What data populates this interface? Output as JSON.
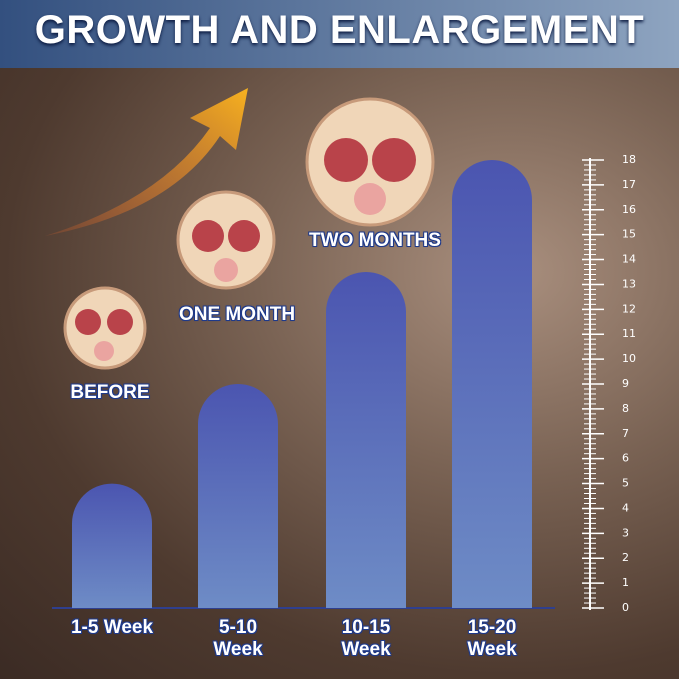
{
  "chart_data": {
    "type": "bar",
    "title": "GROWTH AND ENLARGEMENT",
    "annotations": [
      "BEFORE",
      "ONE MONTH",
      "TWO MONTHS"
    ],
    "categories": [
      "1-5 Week",
      "5-10 Week",
      "10-15 Week",
      "15-20 Week"
    ],
    "values": [
      5,
      9,
      13.5,
      18
    ],
    "color": "#4c57b2",
    "ylim": [
      0,
      18
    ],
    "yticks": [
      0,
      1,
      2,
      3,
      4,
      5,
      6,
      7,
      8,
      9,
      10,
      11,
      12,
      13,
      14,
      15,
      16,
      17,
      18
    ]
  }
}
